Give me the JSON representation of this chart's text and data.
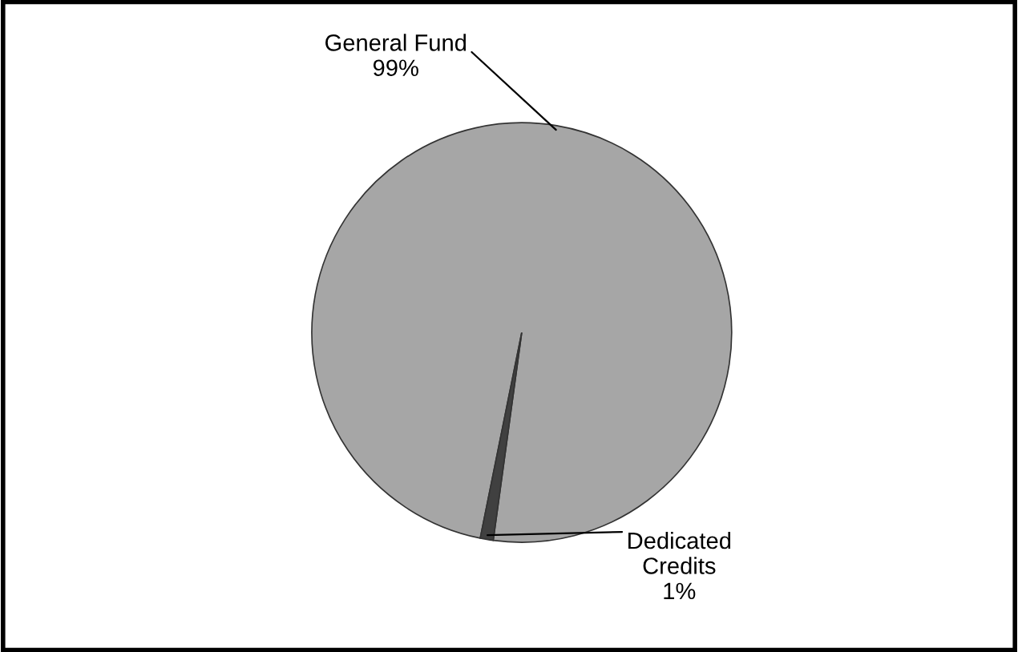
{
  "chart_data": {
    "type": "pie",
    "categories": [
      "General Fund",
      "Dedicated Credits"
    ],
    "values": [
      99,
      1
    ],
    "value_labels": [
      "99%",
      "1%"
    ],
    "colors": [
      "#a6a6a6",
      "#404040"
    ]
  }
}
